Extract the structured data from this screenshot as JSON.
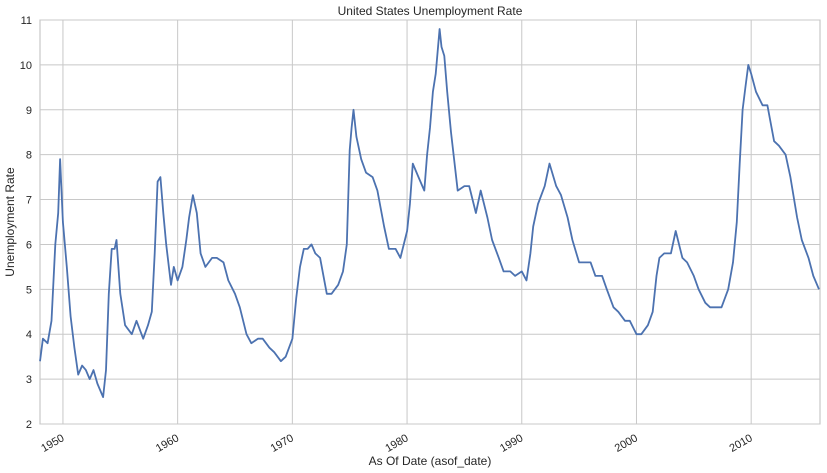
{
  "chart_data": {
    "type": "line",
    "title": "United States Unemployment Rate",
    "xlabel": "As Of Date (asof_date)",
    "ylabel": "Unemployment Rate",
    "xlim": [
      "1948-01",
      "2015-12"
    ],
    "ylim": [
      2,
      11
    ],
    "yticks": [
      2,
      3,
      4,
      5,
      6,
      7,
      8,
      9,
      10,
      11
    ],
    "xticks": [
      "1950",
      "1960",
      "1970",
      "1980",
      "1990",
      "2000",
      "2010"
    ],
    "grid": true,
    "line_color": "#4c72b0",
    "grid_color": "#c8c8c8",
    "series": [
      {
        "name": "",
        "x": [
          "1948-01",
          "1948-04",
          "1948-09",
          "1949-01",
          "1949-05",
          "1949-08",
          "1949-10",
          "1950-01",
          "1950-05",
          "1950-09",
          "1951-01",
          "1951-05",
          "1951-09",
          "1952-01",
          "1952-05",
          "1952-09",
          "1953-01",
          "1953-07",
          "1953-10",
          "1954-01",
          "1954-04",
          "1954-07",
          "1954-09",
          "1955-01",
          "1955-06",
          "1956-01",
          "1956-06",
          "1957-01",
          "1957-06",
          "1957-10",
          "1958-01",
          "1958-04",
          "1958-07",
          "1958-10",
          "1959-01",
          "1959-06",
          "1959-09",
          "1960-01",
          "1960-06",
          "1960-10",
          "1961-01",
          "1961-05",
          "1961-09",
          "1962-01",
          "1962-06",
          "1963-01",
          "1963-06",
          "1964-01",
          "1964-06",
          "1965-01",
          "1965-06",
          "1966-01",
          "1966-06",
          "1967-01",
          "1967-06",
          "1968-01",
          "1968-06",
          "1969-01",
          "1969-06",
          "1970-01",
          "1970-05",
          "1970-09",
          "1971-01",
          "1971-05",
          "1971-09",
          "1972-01",
          "1972-06",
          "1973-01",
          "1973-06",
          "1974-01",
          "1974-06",
          "1974-10",
          "1975-01",
          "1975-03",
          "1975-05",
          "1975-08",
          "1976-01",
          "1976-06",
          "1977-01",
          "1977-06",
          "1978-01",
          "1978-06",
          "1979-01",
          "1979-06",
          "1980-01",
          "1980-04",
          "1980-07",
          "1981-01",
          "1981-07",
          "1981-10",
          "1982-01",
          "1982-04",
          "1982-07",
          "1982-11",
          "1983-01",
          "1983-04",
          "1983-07",
          "1983-11",
          "1984-06",
          "1985-01",
          "1985-06",
          "1986-01",
          "1986-06",
          "1987-01",
          "1987-06",
          "1988-01",
          "1988-06",
          "1989-01",
          "1989-06",
          "1990-01",
          "1990-06",
          "1990-10",
          "1991-01",
          "1991-06",
          "1992-01",
          "1992-06",
          "1993-01",
          "1993-06",
          "1994-01",
          "1994-06",
          "1995-01",
          "1995-06",
          "1996-01",
          "1996-06",
          "1997-01",
          "1997-06",
          "1998-01",
          "1998-06",
          "1999-01",
          "1999-06",
          "2000-01",
          "2000-06",
          "2001-01",
          "2001-06",
          "2001-10",
          "2002-01",
          "2002-06",
          "2003-01",
          "2003-06",
          "2004-01",
          "2004-06",
          "2005-01",
          "2005-06",
          "2006-01",
          "2006-06",
          "2007-01",
          "2007-06",
          "2008-01",
          "2008-06",
          "2008-10",
          "2009-01",
          "2009-04",
          "2009-07",
          "2009-10",
          "2010-01",
          "2010-06",
          "2011-01",
          "2011-06",
          "2012-01",
          "2012-06",
          "2013-01",
          "2013-06",
          "2014-01",
          "2014-06",
          "2015-01",
          "2015-06",
          "2015-12"
        ],
        "values": [
          3.4,
          3.9,
          3.8,
          4.3,
          6.0,
          6.7,
          7.9,
          6.5,
          5.5,
          4.4,
          3.7,
          3.1,
          3.3,
          3.2,
          3.0,
          3.2,
          2.9,
          2.6,
          3.2,
          4.9,
          5.9,
          5.9,
          6.1,
          4.9,
          4.2,
          4.0,
          4.3,
          3.9,
          4.2,
          4.5,
          5.8,
          7.4,
          7.5,
          6.7,
          6.0,
          5.1,
          5.5,
          5.2,
          5.5,
          6.1,
          6.6,
          7.1,
          6.7,
          5.8,
          5.5,
          5.7,
          5.7,
          5.6,
          5.2,
          4.9,
          4.6,
          4.0,
          3.8,
          3.9,
          3.9,
          3.7,
          3.6,
          3.4,
          3.5,
          3.9,
          4.8,
          5.5,
          5.9,
          5.9,
          6.0,
          5.8,
          5.7,
          4.9,
          4.9,
          5.1,
          5.4,
          6.0,
          8.1,
          8.6,
          9.0,
          8.4,
          7.9,
          7.6,
          7.5,
          7.2,
          6.4,
          5.9,
          5.9,
          5.7,
          6.3,
          6.9,
          7.8,
          7.5,
          7.2,
          8.0,
          8.6,
          9.4,
          9.8,
          10.8,
          10.4,
          10.2,
          9.4,
          8.5,
          7.2,
          7.3,
          7.3,
          6.7,
          7.2,
          6.6,
          6.1,
          5.7,
          5.4,
          5.4,
          5.3,
          5.4,
          5.2,
          5.8,
          6.4,
          6.9,
          7.3,
          7.8,
          7.3,
          7.1,
          6.6,
          6.1,
          5.6,
          5.6,
          5.6,
          5.3,
          5.3,
          5.0,
          4.6,
          4.5,
          4.3,
          4.3,
          4.0,
          4.0,
          4.2,
          4.5,
          5.3,
          5.7,
          5.8,
          5.8,
          6.3,
          5.7,
          5.6,
          5.3,
          5.0,
          4.7,
          4.6,
          4.6,
          4.6,
          5.0,
          5.6,
          6.5,
          7.8,
          9.0,
          9.5,
          10.0,
          9.8,
          9.4,
          9.1,
          9.1,
          8.3,
          8.2,
          8.0,
          7.5,
          6.6,
          6.1,
          5.7,
          5.3,
          5.0
        ]
      }
    ]
  }
}
